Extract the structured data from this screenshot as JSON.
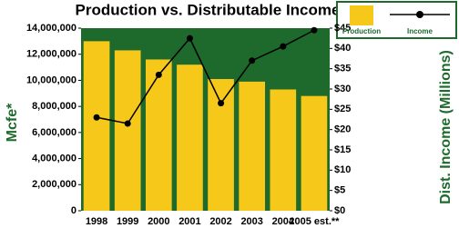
{
  "chart_data": {
    "type": "bar-line",
    "title": "Production vs. Distributable Income",
    "ylabel": "Mcfe*",
    "y2label": "Dist. Income (Millions)",
    "categories": [
      "1998",
      "1999",
      "2000",
      "2001",
      "2002",
      "2003",
      "2004",
      "2005 est.**"
    ],
    "series": [
      {
        "name": "Production",
        "color": "#f6c81a",
        "values": [
          13000000,
          12300000,
          11600000,
          11200000,
          10100000,
          9900000,
          9300000,
          8800000
        ]
      },
      {
        "name": "Income",
        "color": "#000000",
        "axis": "y2",
        "values": [
          23,
          21.5,
          33.5,
          42.5,
          26.5,
          37,
          40.5,
          44.5
        ]
      }
    ],
    "ylim": [
      0,
      14000000
    ],
    "yticks": [
      0,
      {
        "value": 2000000,
        "label": "2,000,000"
      },
      {
        "value": 4000000,
        "label": "4,000,000"
      },
      {
        "value": 6000000,
        "label": "6,000,000"
      },
      {
        "value": 8000000,
        "label": "8,000,000"
      },
      {
        "value": 10000000,
        "label": "10,000,000"
      },
      {
        "value": 12000000,
        "label": "12,000,000"
      },
      {
        "value": 14000000,
        "label": "14,000,000"
      }
    ],
    "y2lim": [
      0,
      45
    ],
    "y2ticks": [
      {
        "value": 0,
        "label": "$0"
      },
      {
        "value": 5,
        "label": "$5"
      },
      {
        "value": 10,
        "label": "$10"
      },
      {
        "value": 15,
        "label": "$15"
      },
      {
        "value": 20,
        "label": "$20"
      },
      {
        "value": 25,
        "label": "$25"
      },
      {
        "value": 30,
        "label": "$30"
      },
      {
        "value": 35,
        "label": "$35"
      },
      {
        "value": 40,
        "label": "$40"
      },
      {
        "value": 45,
        "label": "$45"
      }
    ],
    "plot_background": "#1d6a2c"
  }
}
